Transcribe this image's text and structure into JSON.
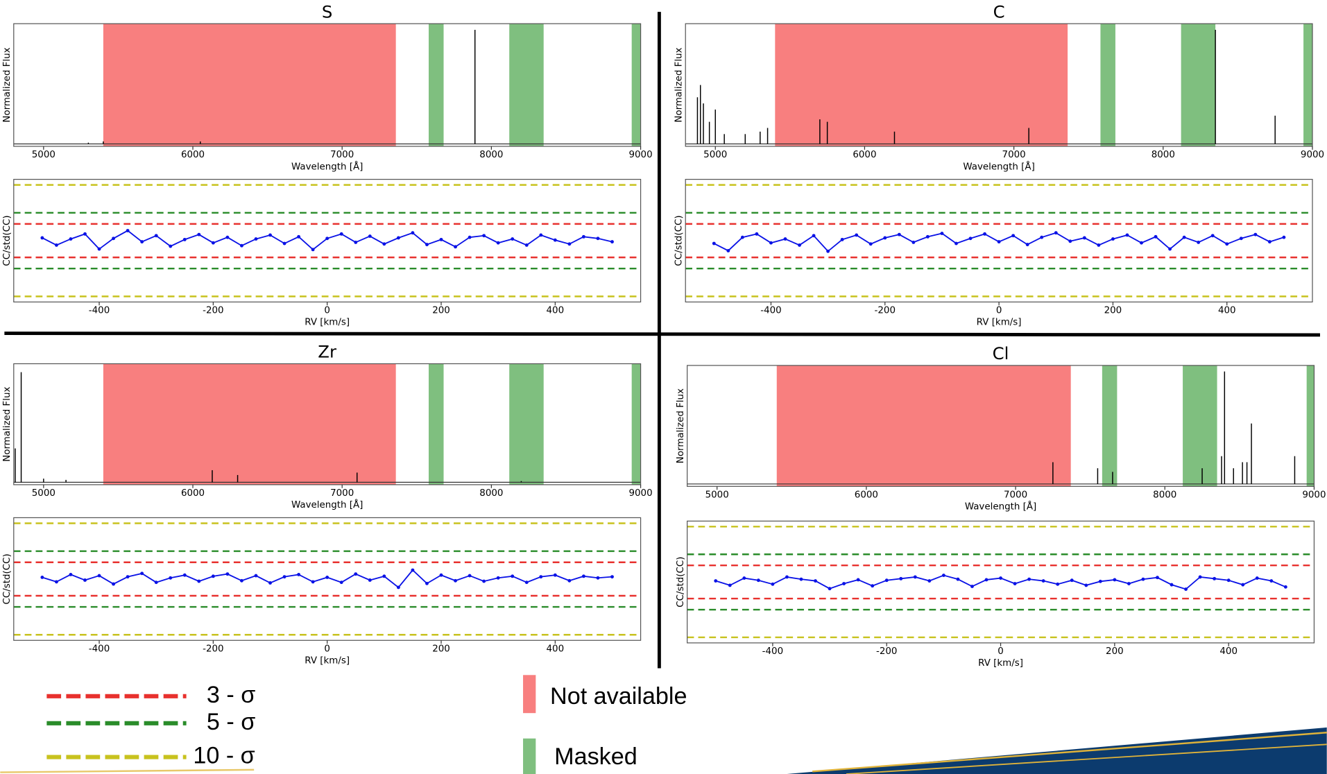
{
  "chart_data": [
    {
      "type": "spectrum",
      "title": "S",
      "xlabel": "Wavelength [Å]",
      "ylabel": "Normalized Flux",
      "xlim": [
        4800,
        9000
      ],
      "xticks": [
        5000,
        6000,
        7000,
        8000,
        9000
      ],
      "ylim": [
        0,
        1
      ],
      "baseline": 0.02,
      "unavailable_regions": [
        [
          5400,
          7360
        ]
      ],
      "masked_regions": [
        [
          7580,
          7680
        ],
        [
          8120,
          8350
        ],
        [
          8940,
          9000
        ]
      ],
      "x": [
        5300,
        5400,
        6050,
        7890
      ],
      "values": [
        0.03,
        0.04,
        0.04,
        0.95
      ]
    },
    {
      "type": "cc",
      "xlabel": "RV [km/s]",
      "ylabel": "CC/std(CC)",
      "xlim": [
        -550,
        550
      ],
      "xticks": [
        -400,
        -200,
        0,
        200,
        400
      ],
      "ylim": [
        -11,
        11
      ],
      "x": [
        -500,
        -475,
        -450,
        -425,
        -400,
        -375,
        -350,
        -325,
        -300,
        -275,
        -250,
        -225,
        -200,
        -175,
        -150,
        -125,
        -100,
        -75,
        -50,
        -25,
        0,
        25,
        50,
        75,
        100,
        125,
        150,
        175,
        200,
        225,
        250,
        275,
        300,
        325,
        350,
        375,
        400,
        425,
        450,
        475,
        500
      ],
      "values": [
        0.5,
        -0.8,
        0.3,
        1.2,
        -1.5,
        0.4,
        1.8,
        -0.2,
        0.9,
        -1.0,
        0.2,
        1.1,
        -0.4,
        0.6,
        -0.9,
        0.3,
        1.0,
        -0.5,
        0.7,
        -1.6,
        0.4,
        1.2,
        -0.3,
        0.8,
        -0.6,
        0.5,
        1.4,
        -0.7,
        0.2,
        -1.1,
        0.6,
        0.9,
        -0.4,
        0.3,
        -0.8,
        1.0,
        0.1,
        -0.6,
        0.7,
        0.4,
        -0.2
      ]
    },
    {
      "type": "spectrum",
      "title": "C",
      "xlabel": "Wavelength [Å]",
      "ylabel": "Normalized Flux",
      "xlim": [
        4800,
        9000
      ],
      "xticks": [
        5000,
        6000,
        7000,
        8000,
        9000
      ],
      "ylim": [
        0,
        1
      ],
      "baseline": 0.02,
      "unavailable_regions": [
        [
          5400,
          7360
        ]
      ],
      "masked_regions": [
        [
          7580,
          7680
        ],
        [
          8120,
          8350
        ],
        [
          8940,
          9000
        ]
      ],
      "x": [
        4880,
        4900,
        4920,
        4960,
        5000,
        5060,
        5200,
        5300,
        5350,
        5700,
        5750,
        6200,
        7100,
        8350,
        8750
      ],
      "values": [
        0.4,
        0.5,
        0.35,
        0.2,
        0.3,
        0.1,
        0.1,
        0.12,
        0.15,
        0.22,
        0.2,
        0.12,
        0.15,
        0.95,
        0.25
      ]
    },
    {
      "type": "cc",
      "xlabel": "RV [km/s]",
      "ylabel": "CC/std(CC)",
      "xlim": [
        -550,
        550
      ],
      "xticks": [
        -400,
        -200,
        0,
        200,
        400
      ],
      "ylim": [
        -11,
        11
      ],
      "x": [
        -500,
        -475,
        -450,
        -425,
        -400,
        -375,
        -350,
        -325,
        -300,
        -275,
        -250,
        -225,
        -200,
        -175,
        -150,
        -125,
        -100,
        -75,
        -50,
        -25,
        0,
        25,
        50,
        75,
        100,
        125,
        150,
        175,
        200,
        225,
        250,
        275,
        300,
        325,
        350,
        375,
        400,
        425,
        450,
        475,
        500
      ],
      "values": [
        -0.5,
        -1.8,
        0.6,
        1.2,
        -0.4,
        0.3,
        -0.8,
        0.9,
        -1.9,
        0.2,
        1.0,
        -0.6,
        0.5,
        1.1,
        -0.3,
        0.7,
        1.3,
        -0.5,
        0.4,
        1.2,
        -0.2,
        0.9,
        -0.7,
        0.6,
        1.4,
        -0.1,
        0.5,
        -0.8,
        0.3,
        1.0,
        -0.4,
        0.7,
        -1.5,
        0.6,
        -0.3,
        0.9,
        -0.6,
        0.4,
        1.1,
        -0.2,
        0.6
      ]
    },
    {
      "type": "spectrum",
      "title": "Zr",
      "xlabel": "Wavelength [Å]",
      "ylabel": "Normalized Flux",
      "xlim": [
        4800,
        9000
      ],
      "xticks": [
        5000,
        6000,
        7000,
        8000,
        9000
      ],
      "ylim": [
        0,
        1
      ],
      "baseline": 0.02,
      "unavailable_regions": [
        [
          5400,
          7360
        ]
      ],
      "masked_regions": [
        [
          7580,
          7680
        ],
        [
          8120,
          8350
        ],
        [
          8940,
          9000
        ]
      ],
      "x": [
        4810,
        4850,
        5000,
        5150,
        6130,
        6300,
        7100,
        8200
      ],
      "values": [
        0.3,
        0.93,
        0.05,
        0.04,
        0.12,
        0.08,
        0.1,
        0.03
      ]
    },
    {
      "type": "cc",
      "xlabel": "RV [km/s]",
      "ylabel": "CC/std(CC)",
      "xlim": [
        -550,
        550
      ],
      "xticks": [
        -400,
        -200,
        0,
        200,
        400
      ],
      "ylim": [
        -11,
        11
      ],
      "x": [
        -500,
        -475,
        -450,
        -425,
        -400,
        -375,
        -350,
        -325,
        -300,
        -275,
        -250,
        -225,
        -200,
        -175,
        -150,
        -125,
        -100,
        -75,
        -50,
        -25,
        0,
        25,
        50,
        75,
        100,
        125,
        150,
        175,
        200,
        225,
        250,
        275,
        300,
        325,
        350,
        375,
        400,
        425,
        450,
        475,
        500
      ],
      "values": [
        0.3,
        -0.5,
        0.8,
        -0.2,
        0.6,
        -0.9,
        0.4,
        1.0,
        -0.6,
        0.2,
        0.7,
        -0.4,
        0.5,
        0.9,
        -0.3,
        0.6,
        -0.7,
        0.4,
        0.8,
        -0.5,
        0.3,
        -0.6,
        0.9,
        -0.2,
        0.5,
        -1.5,
        1.6,
        -0.8,
        0.7,
        -0.3,
        0.6,
        -0.4,
        0.2,
        0.5,
        -0.6,
        0.4,
        0.7,
        -0.3,
        0.5,
        0.2,
        0.4
      ]
    },
    {
      "type": "spectrum",
      "title": "Cl",
      "xlabel": "Wavelength [Å]",
      "ylabel": "Normalized Flux",
      "xlim": [
        4800,
        9000
      ],
      "xticks": [
        5000,
        6000,
        7000,
        8000,
        9000
      ],
      "ylim": [
        0,
        1
      ],
      "baseline": 0.02,
      "unavailable_regions": [
        [
          5400,
          7370
        ]
      ],
      "masked_regions": [
        [
          7580,
          7680
        ],
        [
          8120,
          8350
        ],
        [
          8950,
          9000
        ]
      ],
      "x": [
        7250,
        7550,
        7650,
        8250,
        8380,
        8400,
        8460,
        8520,
        8550,
        8580,
        8870
      ],
      "values": [
        0.2,
        0.15,
        0.12,
        0.15,
        0.25,
        0.95,
        0.15,
        0.2,
        0.2,
        0.52,
        0.25
      ]
    },
    {
      "type": "cc",
      "xlabel": "RV [km/s]",
      "ylabel": "CC/std(CC)",
      "xlim": [
        -550,
        550
      ],
      "xticks": [
        -400,
        -200,
        0,
        200,
        400
      ],
      "ylim": [
        -11,
        11
      ],
      "x": [
        -500,
        -475,
        -450,
        -425,
        -400,
        -375,
        -350,
        -325,
        -300,
        -275,
        -250,
        -225,
        -200,
        -175,
        -150,
        -125,
        -100,
        -75,
        -50,
        -25,
        0,
        25,
        50,
        75,
        100,
        125,
        150,
        175,
        200,
        225,
        250,
        275,
        300,
        325,
        350,
        375,
        400,
        425,
        450,
        475,
        500
      ],
      "values": [
        0.2,
        -0.6,
        0.7,
        0.3,
        -0.4,
        0.9,
        0.5,
        0.2,
        -1.2,
        -0.3,
        0.4,
        -0.7,
        0.3,
        0.6,
        0.9,
        0.2,
        1.2,
        0.5,
        -0.8,
        0.4,
        0.7,
        -0.3,
        0.5,
        0.2,
        -0.4,
        0.3,
        -0.6,
        0.1,
        0.4,
        -0.3,
        0.5,
        0.8,
        -0.5,
        -1.3,
        0.9,
        0.6,
        0.3,
        -0.5,
        0.7,
        0.2,
        -0.9
      ]
    }
  ],
  "legend": {
    "thresholds": [
      {
        "name": "3 - σ",
        "value": 3,
        "color": "#e8312e"
      },
      {
        "name": "5 - σ",
        "value": 5,
        "color": "#2a8c2a"
      },
      {
        "name": "10 - σ",
        "value": 10,
        "color": "#c8c21e"
      }
    ],
    "regions": [
      {
        "name": "Not available",
        "color": "#f87f7f"
      },
      {
        "name": "Masked",
        "color": "#7fbf7f"
      }
    ],
    "line_color": "#0a12e6"
  }
}
